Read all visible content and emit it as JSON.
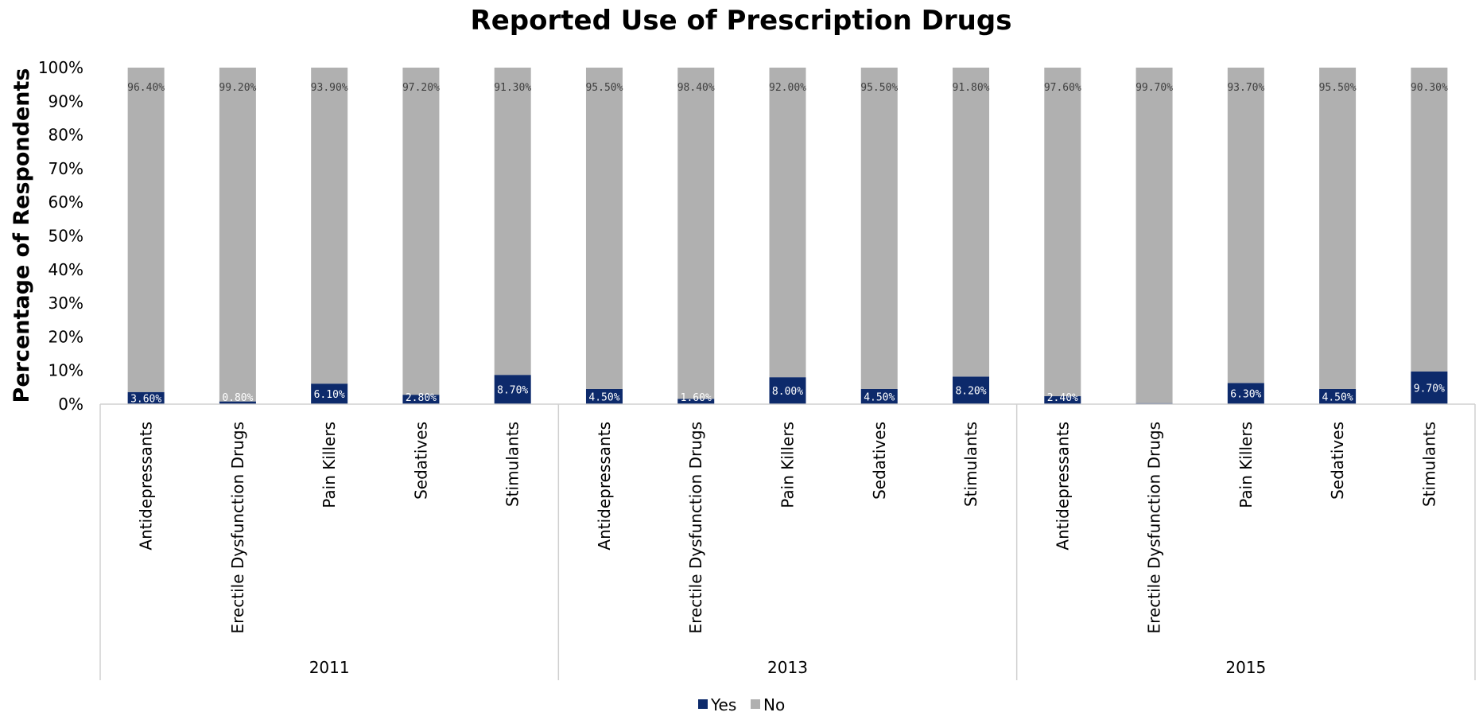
{
  "chart_data": {
    "type": "bar",
    "stacked": true,
    "title": "Reported Use of Prescription Drugs",
    "ylabel": "Percentage of Respondents",
    "ylim": [
      0,
      100
    ],
    "yticks": [
      "0%",
      "10%",
      "20%",
      "30%",
      "40%",
      "50%",
      "60%",
      "70%",
      "80%",
      "90%",
      "100%"
    ],
    "groups": [
      "2011",
      "2013",
      "2015"
    ],
    "categories": [
      "Antidepressants",
      "Erectile Dysfunction Drugs",
      "Pain Killers",
      "Sedatives",
      "Stimulants"
    ],
    "series": [
      {
        "name": "Yes",
        "color": "#0d2a6b",
        "values": [
          [
            3.6,
            0.8,
            6.1,
            2.8,
            8.7
          ],
          [
            4.5,
            1.6,
            8.0,
            4.5,
            8.2
          ],
          [
            2.4,
            0.3,
            6.3,
            4.5,
            9.7
          ]
        ],
        "labels": [
          [
            "3.60%",
            "0.80%",
            "6.10%",
            "2.80%",
            "8.70%"
          ],
          [
            "4.50%",
            "1.60%",
            "8.00%",
            "4.50%",
            "8.20%"
          ],
          [
            "2.40%",
            "",
            "6.30%",
            "4.50%",
            "9.70%"
          ]
        ]
      },
      {
        "name": "No",
        "color": "#b0b0b0",
        "values": [
          [
            96.4,
            99.2,
            93.9,
            97.2,
            91.3
          ],
          [
            95.5,
            98.4,
            92.0,
            95.5,
            91.8
          ],
          [
            97.6,
            99.7,
            93.7,
            95.5,
            90.3
          ]
        ],
        "labels": [
          [
            "96.40%",
            "99.20%",
            "93.90%",
            "97.20%",
            "91.30%"
          ],
          [
            "95.50%",
            "98.40%",
            "92.00%",
            "95.50%",
            "91.80%"
          ],
          [
            "97.60%",
            "99.70%",
            "93.70%",
            "95.50%",
            "90.30%"
          ]
        ]
      }
    ],
    "legend": "bottom",
    "grid": false
  }
}
